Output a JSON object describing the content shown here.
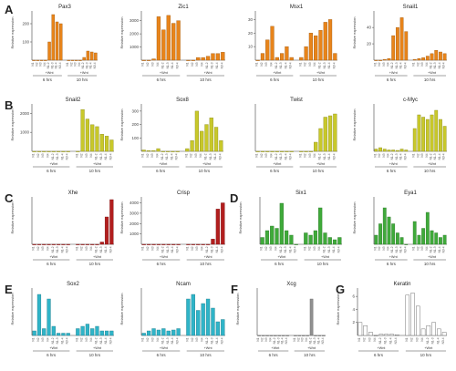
{
  "figure": {
    "common": {
      "group_labels": [
        "6 hrs",
        "10 hrs"
      ],
      "treatment_label": "+Wnt"
    },
    "colors": {
      "orange": "#e8841a",
      "yellow": "#c8c82a",
      "red": "#b21e1e",
      "green": "#3faa3a",
      "cyan": "#2fb4c8",
      "gray": "#909090",
      "white": "#ffffff"
    }
  },
  "chart_data": [
    {
      "panel": "A",
      "type": "bar",
      "title": "Pax3",
      "ylabel": "Relative expression",
      "color": "orange",
      "yticks": [
        "100",
        "200"
      ],
      "ylim": [
        0,
        260
      ],
      "tick_values": [
        100,
        200
      ],
      "categories": [
        "N1",
        "N2",
        "N3",
        "N4",
        "N1-2",
        "N1-3",
        "N1-4",
        "N3-4",
        "",
        "N1",
        "N2",
        "N3",
        "N4",
        "N1-2",
        "N1-3",
        "N1-4",
        "N3-4"
      ],
      "values": [
        0,
        0,
        0,
        0,
        100,
        250,
        210,
        200,
        0,
        0,
        0,
        0,
        0,
        15,
        50,
        45,
        40
      ]
    },
    {
      "panel": "A",
      "type": "bar",
      "title": "Zic1",
      "ylabel": "Relative expression",
      "color": "orange",
      "yticks": [
        "1000",
        "2000",
        "3000"
      ],
      "ylim": [
        0,
        3600
      ],
      "tick_values": [
        1000,
        2000,
        3000
      ],
      "categories": [
        "N1",
        "N2",
        "N3",
        "N4",
        "N1-2",
        "N1-3",
        "N1-4",
        "N3-4",
        "",
        "N1",
        "N2",
        "N3",
        "N4",
        "N1-2",
        "N1-3",
        "N1-4",
        "N3-4"
      ],
      "values": [
        0,
        0,
        100,
        3300,
        2300,
        3400,
        2800,
        3000,
        0,
        0,
        0,
        200,
        200,
        300,
        500,
        500,
        600
      ]
    },
    {
      "panel": "A",
      "type": "bar",
      "title": "Msx1",
      "ylabel": "",
      "color": "orange",
      "yticks": [
        "10",
        "20",
        "30"
      ],
      "ylim": [
        0,
        35
      ],
      "tick_values": [
        10,
        20,
        30
      ],
      "categories": [
        "N1",
        "N2",
        "N3",
        "N4",
        "N1-2",
        "N1-3",
        "N1-4",
        "N3-4",
        "",
        "N1",
        "N2",
        "N3",
        "N4",
        "N1-2",
        "N1-3",
        "N1-4",
        "N3-4"
      ],
      "values": [
        0,
        5,
        15,
        25,
        2,
        5,
        10,
        2,
        0,
        2,
        10,
        20,
        18,
        22,
        28,
        30,
        5
      ]
    },
    {
      "panel": "A",
      "type": "bar",
      "title": "Snail1",
      "ylabel": "Relative expression",
      "color": "orange",
      "yticks": [
        "20",
        "40"
      ],
      "ylim": [
        0,
        58
      ],
      "tick_values": [
        20,
        40
      ],
      "categories": [
        "N1",
        "N2",
        "N3",
        "N4",
        "N1-2",
        "N1-3",
        "N1-4",
        "N3-4",
        "",
        "N1",
        "N2",
        "N3",
        "N4",
        "N1-2",
        "N1-3",
        "N1-4",
        "N3-4"
      ],
      "values": [
        0,
        0,
        1,
        2,
        30,
        40,
        52,
        35,
        0,
        1,
        2,
        3,
        5,
        8,
        12,
        10,
        8
      ]
    },
    {
      "panel": "B",
      "type": "bar",
      "title": "Snail2",
      "ylabel": "Relative expression",
      "color": "yellow",
      "yticks": [
        "1000",
        "2000"
      ],
      "ylim": [
        0,
        2400
      ],
      "tick_values": [
        1000,
        2000
      ],
      "categories": [
        "N1",
        "N2",
        "N3",
        "N4",
        "N1-2",
        "N1-3",
        "N1-4",
        "N3-4",
        "",
        "N1",
        "N2",
        "N3",
        "N4",
        "N1-2",
        "N1-3",
        "N1-4",
        "N3-4"
      ],
      "values": [
        0,
        0,
        0,
        0,
        0,
        0,
        0,
        0,
        0,
        0,
        2200,
        1700,
        1400,
        1300,
        900,
        800,
        600
      ]
    },
    {
      "panel": "B",
      "type": "bar",
      "title": "Sox8",
      "ylabel": "Relative expression",
      "color": "yellow",
      "yticks": [
        "100",
        "200",
        "300"
      ],
      "ylim": [
        0,
        340
      ],
      "tick_values": [
        100,
        200,
        300
      ],
      "categories": [
        "N1",
        "N2",
        "N3",
        "N4",
        "N1-2",
        "N1-3",
        "N1-4",
        "N3-4",
        "",
        "N1",
        "N2",
        "N3",
        "N4",
        "N1-2",
        "N1-3",
        "N1-4",
        "N3-4"
      ],
      "values": [
        10,
        5,
        5,
        20,
        0,
        0,
        0,
        0,
        0,
        20,
        80,
        300,
        150,
        200,
        250,
        180,
        80
      ]
    },
    {
      "panel": "B",
      "type": "bar",
      "title": "Twist",
      "ylabel": "",
      "color": "yellow",
      "yticks": [],
      "ylim": [
        0,
        100
      ],
      "tick_values": [],
      "categories": [
        "N1",
        "N2",
        "N3",
        "N4",
        "N1-2",
        "N1-3",
        "N1-4",
        "N3-4",
        "",
        "N1",
        "N2",
        "N3",
        "N4",
        "N1-2",
        "N1-3",
        "N1-4",
        "N3-4"
      ],
      "values": [
        0,
        0,
        0,
        0,
        0,
        0,
        0,
        0,
        0,
        0,
        0,
        0,
        20,
        50,
        75,
        78,
        82
      ]
    },
    {
      "panel": "B",
      "type": "bar",
      "title": "c-Myc",
      "ylabel": "Relative expression",
      "color": "yellow",
      "yticks": [],
      "ylim": [
        0,
        100
      ],
      "tick_values": [],
      "categories": [
        "N1",
        "N2",
        "N3",
        "N4",
        "N1-2",
        "N1-3",
        "N1-4",
        "N3-4",
        "",
        "N1",
        "N2",
        "N3",
        "N4",
        "N1-2",
        "N1-3",
        "N1-4",
        "N3-4"
      ],
      "values": [
        5,
        8,
        5,
        3,
        3,
        2,
        5,
        3,
        0,
        50,
        80,
        75,
        70,
        80,
        90,
        70,
        55
      ]
    },
    {
      "panel": "C",
      "type": "bar",
      "title": "Xhe",
      "ylabel": "Relative expression",
      "color": "red",
      "yticks": [],
      "ylim": [
        0,
        100
      ],
      "tick_values": [],
      "categories": [
        "N1",
        "N2",
        "N3",
        "N4",
        "N1-2",
        "N1-3",
        "N1-4",
        "N3-4",
        "",
        "N1",
        "N2",
        "N3",
        "N4",
        "N1-2",
        "N1-3",
        "N1-4",
        "N3-4"
      ],
      "values": [
        0,
        0,
        0,
        0,
        0,
        0,
        0,
        0,
        0,
        0,
        0,
        0,
        0,
        0,
        5,
        60,
        98
      ]
    },
    {
      "panel": "C",
      "type": "bar",
      "title": "Crisp",
      "ylabel": "Relative expression",
      "color": "red",
      "yticks": [
        "1000",
        "2000",
        "3000",
        "4000"
      ],
      "ylim": [
        0,
        4400
      ],
      "tick_values": [
        1000,
        2000,
        3000,
        4000
      ],
      "categories": [
        "N1",
        "N2",
        "N3",
        "N4",
        "N1-2",
        "N1-3",
        "N1-4",
        "N3-4",
        "",
        "N1",
        "N2",
        "N3",
        "N4",
        "N1-2",
        "N1-3",
        "N1-4",
        "N3-4"
      ],
      "values": [
        0,
        0,
        0,
        0,
        0,
        0,
        0,
        0,
        0,
        0,
        0,
        0,
        0,
        0,
        500,
        3400,
        4000
      ]
    },
    {
      "panel": "D",
      "type": "bar",
      "title": "Six1",
      "ylabel": "Relative expression",
      "color": "green",
      "yticks": [],
      "ylim": [
        0,
        100
      ],
      "tick_values": [],
      "categories": [
        "N1",
        "N2",
        "N3",
        "N4",
        "N1-2",
        "N1-3",
        "N1-4",
        "N3-4",
        "",
        "N1",
        "N2",
        "N3",
        "N4",
        "N1-2",
        "N1-3",
        "N1-4",
        "N3-4"
      ],
      "values": [
        15,
        30,
        40,
        35,
        90,
        30,
        20,
        0,
        0,
        25,
        20,
        30,
        80,
        25,
        15,
        10,
        15
      ]
    },
    {
      "panel": "D",
      "type": "bar",
      "title": "Eya1",
      "ylabel": "Relative expression",
      "color": "green",
      "yticks": [],
      "ylim": [
        0,
        100
      ],
      "tick_values": [],
      "categories": [
        "N1",
        "N2",
        "N3",
        "N4",
        "N1-2",
        "N1-3",
        "N1-4",
        "N3-4",
        "",
        "N1",
        "N2",
        "N3",
        "N4",
        "N1-2",
        "N1-3",
        "N1-4",
        "N3-4"
      ],
      "values": [
        20,
        45,
        80,
        60,
        45,
        25,
        15,
        0,
        0,
        50,
        20,
        35,
        70,
        30,
        25,
        15,
        20
      ]
    },
    {
      "panel": "E",
      "type": "bar",
      "title": "Sox2",
      "ylabel": "Relative expression",
      "color": "cyan",
      "yticks": [],
      "ylim": [
        0,
        100
      ],
      "tick_values": [],
      "categories": [
        "N1",
        "N2",
        "N3",
        "N4",
        "N1-2",
        "N1-3",
        "N1-4",
        "N3-4",
        "",
        "N1",
        "N2",
        "N3",
        "N4",
        "N1-2",
        "N1-3",
        "N1-4",
        "N3-4"
      ],
      "values": [
        10,
        90,
        15,
        80,
        20,
        5,
        5,
        5,
        0,
        15,
        20,
        25,
        15,
        20,
        10,
        10,
        10
      ]
    },
    {
      "panel": "E",
      "type": "bar",
      "title": "Ncam",
      "ylabel": "Relative expression",
      "color": "cyan",
      "yticks": [],
      "ylim": [
        0,
        100
      ],
      "tick_values": [],
      "categories": [
        "N1",
        "N2",
        "N3",
        "N4",
        "N1-2",
        "N1-3",
        "N1-4",
        "N3-4",
        "",
        "N1",
        "N2",
        "N3",
        "N4",
        "N1-2",
        "N1-3",
        "N1-4",
        "N3-4"
      ],
      "values": [
        5,
        10,
        15,
        12,
        15,
        10,
        12,
        15,
        0,
        80,
        90,
        55,
        70,
        80,
        60,
        30,
        35
      ]
    },
    {
      "panel": "F",
      "type": "bar",
      "title": "Xcg",
      "ylabel": "Relative expression",
      "color": "gray",
      "yticks": [],
      "ylim": [
        0,
        100
      ],
      "tick_values": [],
      "categories": [
        "N1",
        "N2",
        "N3",
        "N4",
        "N1-2",
        "N1-3",
        "N1-4",
        "N3-4",
        "",
        "N1",
        "N2",
        "N3",
        "N4",
        "N1-2",
        "N1-3",
        "N1-4",
        "N3-4"
      ],
      "values": [
        0,
        0,
        0,
        0,
        0,
        0,
        0,
        0,
        0,
        0,
        0,
        0,
        0,
        80,
        0,
        0,
        0
      ]
    },
    {
      "panel": "G",
      "type": "bar",
      "title": "Keratin",
      "ylabel": "Relative expression",
      "color": "white",
      "yticks": [
        "2",
        "4",
        "6"
      ],
      "ylim": [
        0,
        7
      ],
      "tick_values": [
        2,
        4,
        6
      ],
      "categories": [
        "N1",
        "N2",
        "N3",
        "N4",
        "N1-2",
        "N1-3",
        "N1-4",
        "N3-4",
        "",
        "N1",
        "N2",
        "N3",
        "N4",
        "N1-2",
        "N1-3",
        "N1-4",
        "N3-4"
      ],
      "values": [
        2,
        1.5,
        0.5,
        0,
        0.2,
        0.2,
        0.2,
        0.1,
        0,
        6.2,
        6.5,
        4.5,
        1.0,
        1.5,
        2.0,
        1.0,
        0.5
      ]
    }
  ]
}
